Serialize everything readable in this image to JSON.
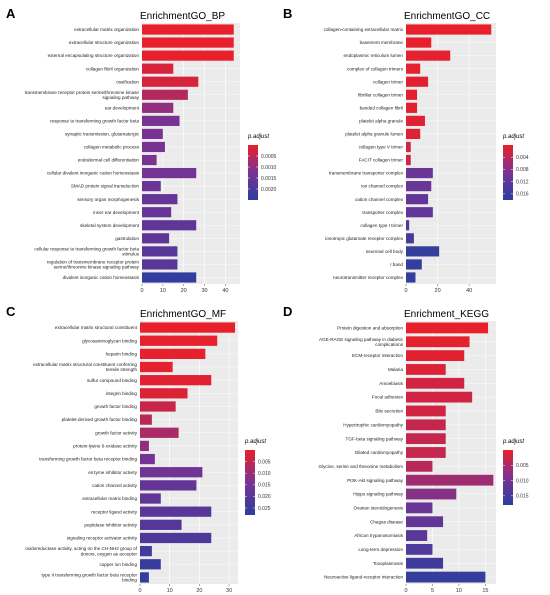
{
  "chart_data": [
    {
      "panel_letter": "A",
      "title": "EnrichmentGO_BP",
      "type": "bar",
      "orientation": "horizontal",
      "xlim": [
        0,
        47
      ],
      "xticks": [
        0,
        10,
        20,
        30,
        40
      ],
      "grid": true,
      "categories": [
        "extracellular matrix organization",
        "extracellular structure organization",
        "external encapsulating structure organization",
        "collagen fibril organization",
        "ossification",
        "transmembrane receptor protein serine/threonine kinase signaling pathway",
        "ear development",
        "response to transforming growth factor beta",
        "synaptic transmission, glutamatergic",
        "collagen metabolic process",
        "endodermal cell differentiation",
        "cellular divalent inorganic cation homeostasis",
        "SMAD protein signal transduction",
        "sensory organ morphogenesis",
        "inner ear development",
        "skeletal system development",
        "gastrulation",
        "cellular response to transforming growth factor beta stimulus",
        "regulation of transmembrane receptor protein serine/threonine kinase signaling pathway",
        "divalent inorganic cation homeostasis"
      ],
      "values": [
        44,
        44,
        44,
        15,
        27,
        22,
        15,
        18,
        10,
        11,
        7,
        26,
        9,
        17,
        14,
        26,
        13,
        17,
        17,
        26
      ],
      "color_values": [
        1e-05,
        1e-05,
        1e-05,
        0.0002,
        0.0002,
        0.0006,
        0.001,
        0.0013,
        0.0013,
        0.0013,
        0.0013,
        0.0014,
        0.0015,
        0.0016,
        0.0016,
        0.0017,
        0.0017,
        0.0018,
        0.0018,
        0.0024
      ],
      "legend": {
        "title": "p.adjust",
        "ticks": [
          "0.0005",
          "0.0010",
          "0.0015",
          "0.0020"
        ],
        "tick_values": [
          0.0005,
          0.001,
          0.0015,
          0.002
        ],
        "range": [
          0,
          0.0025
        ]
      }
    },
    {
      "panel_letter": "B",
      "title": "EnrichmentGO_CC",
      "type": "bar",
      "orientation": "horizontal",
      "xlim": [
        0,
        57
      ],
      "xticks": [
        0,
        20,
        40
      ],
      "grid": true,
      "categories": [
        "collagen-containing extracellular matrix",
        "basement membrane",
        "endoplasmic reticulum lumen",
        "complex of collagen trimers",
        "collagen trimer",
        "fibrillar collagen trimer",
        "banded collagen fibril",
        "platelet alpha granule",
        "platelet alpha granule lumen",
        "collagen type V trimer",
        "FACIT collagen trimer",
        "transmembrane transporter complex",
        "ion channel complex",
        "cation channel complex",
        "transporter complex",
        "collagen type I trimer",
        "ionotropic glutamate receptor complex",
        "neuronal cell body",
        "I band",
        "neurotransmitter receptor complex"
      ],
      "values": [
        54,
        16,
        28,
        9,
        14,
        7,
        7,
        12,
        9,
        3,
        3,
        17,
        16,
        14,
        17,
        2,
        5,
        21,
        10,
        6
      ],
      "color_values": [
        0.0001,
        0.0002,
        0.0003,
        0.0003,
        0.0005,
        0.0006,
        0.0006,
        0.0008,
        0.0009,
        0.002,
        0.002,
        0.011,
        0.011,
        0.012,
        0.012,
        0.014,
        0.015,
        0.017,
        0.017,
        0.017
      ],
      "legend": {
        "title": "p.adjust",
        "ticks": [
          "0.004",
          "0.008",
          "0.012",
          "0.016"
        ],
        "tick_values": [
          0.004,
          0.008,
          0.012,
          0.016
        ],
        "range": [
          0,
          0.018
        ]
      }
    },
    {
      "panel_letter": "C",
      "title": "EnrichmentGO_MF",
      "type": "bar",
      "orientation": "horizontal",
      "xlim": [
        0,
        33
      ],
      "xticks": [
        0,
        10,
        20,
        30
      ],
      "grid": true,
      "categories": [
        "extracellular matrix structural constituent",
        "glycosaminoglycan binding",
        "heparin binding",
        "extracellular matrix structural constituent conferring tensile strength",
        "sulfur compound binding",
        "integrin binding",
        "growth factor binding",
        "platelet-derived growth factor binding",
        "growth factor activity",
        "protein-lysine 6-oxidase activity",
        "transforming growth factor beta receptor binding",
        "enzyme inhibitor activity",
        "cation channel activity",
        "extracellular matrix binding",
        "receptor ligand activity",
        "peptidase inhibitor activity",
        "signaling receptor activator activity",
        "oxidoreductase activity, acting on the CH-NH2 group of donors, oxygen as acceptor",
        "copper ion binding",
        "type II transforming growth factor beta receptor binding"
      ],
      "values": [
        32,
        26,
        22,
        11,
        24,
        16,
        12,
        4,
        13,
        3,
        5,
        21,
        19,
        7,
        24,
        14,
        24,
        4,
        7,
        3
      ],
      "color_values": [
        0.0001,
        0.0002,
        0.0003,
        0.0006,
        0.0009,
        0.0015,
        0.004,
        0.006,
        0.008,
        0.011,
        0.015,
        0.016,
        0.018,
        0.019,
        0.02,
        0.021,
        0.022,
        0.024,
        0.026,
        0.027
      ],
      "legend": {
        "title": "p.adjust",
        "ticks": [
          "0.005",
          "0.010",
          "0.015",
          "0.020",
          "0.025"
        ],
        "tick_values": [
          0.005,
          0.01,
          0.015,
          0.02,
          0.025
        ],
        "range": [
          0,
          0.028
        ]
      }
    },
    {
      "panel_letter": "D",
      "title": "Enrichment_KEGG",
      "type": "bar",
      "orientation": "horizontal",
      "xlim": [
        0,
        17
      ],
      "xticks": [
        0,
        5,
        10,
        15
      ],
      "grid": true,
      "categories": [
        "Protein digestion and absorption",
        "AGE-RAGE signaling pathway in diabetic complications",
        "ECM-receptor interaction",
        "Malaria",
        "Amoebiasis",
        "Focal adhesion",
        "Bile secretion",
        "Hypertrophic cardiomyopathy",
        "TGF-beta signaling pathway",
        "Dilated cardiomyopathy",
        "Glycine, serine and threonine metabolism",
        "PI3K-Akt signaling pathway",
        "Hippo signaling pathway",
        "Ovarian steroidogenesis",
        "Chagas disease",
        "African trypanosomiasis",
        "Long-term depression",
        "Toxoplasmosis",
        "Neuroactive ligand-receptor interaction"
      ],
      "values": [
        15.5,
        12,
        11,
        7.5,
        11,
        12.5,
        7.5,
        7.5,
        7.5,
        7.5,
        5,
        16.5,
        9.5,
        5,
        7,
        4,
        5,
        7,
        15
      ],
      "color_values": [
        0.0001,
        0.0003,
        0.0005,
        0.001,
        0.002,
        0.002,
        0.002,
        0.003,
        0.003,
        0.003,
        0.004,
        0.006,
        0.008,
        0.011,
        0.012,
        0.013,
        0.014,
        0.016,
        0.017
      ],
      "legend": {
        "title": "p.adjust",
        "ticks": [
          "0.005",
          "0.010",
          "0.015"
        ],
        "tick_values": [
          0.005,
          0.01,
          0.015
        ],
        "range": [
          0,
          0.018
        ]
      }
    }
  ],
  "colors": {
    "low": "#e8202a",
    "mid": "#7b3294",
    "high": "#2c3e9e"
  }
}
